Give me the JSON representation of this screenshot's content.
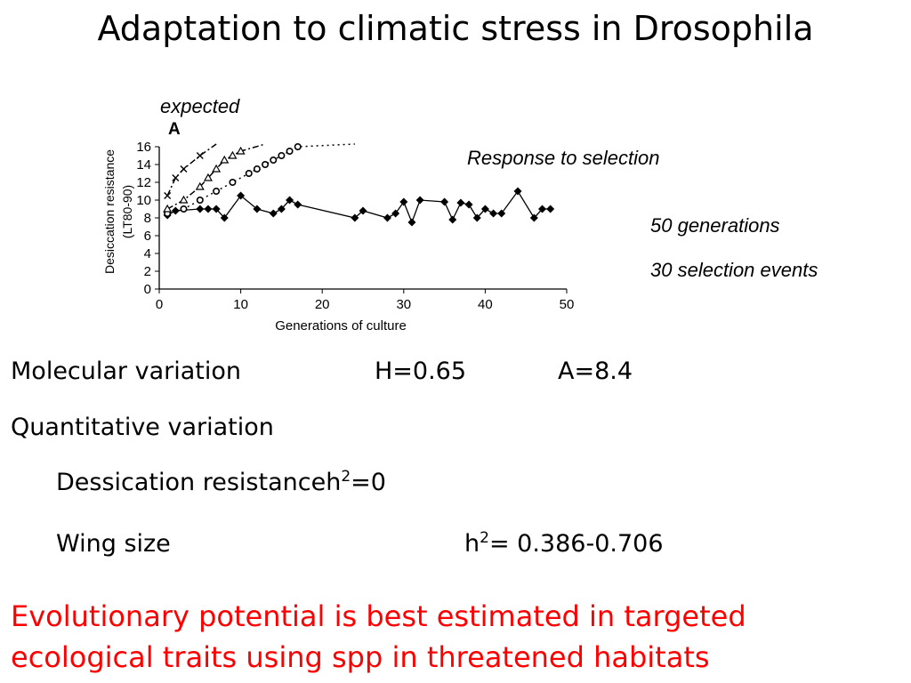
{
  "slide": {
    "title": "Adaptation to climatic stress in Drosophila",
    "annotations": {
      "expected": "expected",
      "response": "Response to selection",
      "generations": "50 generations",
      "selection_events": "30 selection events"
    },
    "molecular": {
      "label": "Molecular variation",
      "h": "H=0.65",
      "a": "A=8.4"
    },
    "quantitative": {
      "label": "Quantitative variation"
    },
    "dessication": {
      "label": "Dessication resistance",
      "h_prefix": "h",
      "sup": "2",
      "value": "=0"
    },
    "wing": {
      "label": "Wing size",
      "h_prefix": "h",
      "sup": "2",
      "value": "= 0.386-0.706"
    },
    "conclusion": {
      "line1": "Evolutionary potential is best estimated in  targeted",
      "line2": "ecological traits using spp in threatened habitats"
    },
    "colors": {
      "conclusion": "#ff0000"
    }
  },
  "chart_data": {
    "type": "line",
    "panel_label": "A",
    "xlabel": "Generations of culture",
    "ylabel": [
      "Desiccation resistance",
      "(LT80-90)"
    ],
    "xlim": [
      0,
      50
    ],
    "ylim": [
      0,
      16
    ],
    "xticks": [
      0,
      10,
      20,
      30,
      40,
      50
    ],
    "yticks": [
      0,
      2,
      4,
      6,
      8,
      10,
      12,
      14,
      16
    ],
    "grid": false,
    "series": [
      {
        "marker": "diamond",
        "line": "solid",
        "x": [
          1,
          2,
          5,
          6,
          7,
          8,
          10,
          12,
          14,
          15,
          16,
          17,
          24,
          25,
          28,
          29,
          30,
          31,
          32,
          35,
          36,
          37,
          38,
          39,
          40,
          41,
          42,
          44,
          46,
          47,
          48
        ],
        "y": [
          8.3,
          8.8,
          9.0,
          9.0,
          9.0,
          8.0,
          10.5,
          9.0,
          8.5,
          9.0,
          10.0,
          9.5,
          8.0,
          8.8,
          8.0,
          8.5,
          9.8,
          7.5,
          10.0,
          9.8,
          7.8,
          9.7,
          9.5,
          8.0,
          9.0,
          8.5,
          8.5,
          11.0,
          8.0,
          9.0,
          9.0
        ]
      },
      {
        "marker": "circle",
        "line": "dotted",
        "x": [
          1,
          3,
          5,
          7,
          9,
          11,
          12,
          13,
          14,
          15,
          16,
          17,
          24
        ],
        "y": [
          8.5,
          9.0,
          10.0,
          11.0,
          12.0,
          13.0,
          13.5,
          14.0,
          14.5,
          15.0,
          15.5,
          16.0,
          16.3
        ]
      },
      {
        "marker": "triangle",
        "line": "dashdot",
        "x": [
          1,
          3,
          5,
          6,
          7,
          8,
          9,
          10,
          13
        ],
        "y": [
          9.0,
          10.0,
          11.5,
          12.5,
          13.5,
          14.5,
          15.0,
          15.5,
          16.3
        ]
      },
      {
        "marker": "cross",
        "line": "dashdot",
        "x": [
          1,
          2,
          3,
          5,
          7
        ],
        "y": [
          10.5,
          12.5,
          13.5,
          15.0,
          16.3
        ]
      }
    ]
  }
}
